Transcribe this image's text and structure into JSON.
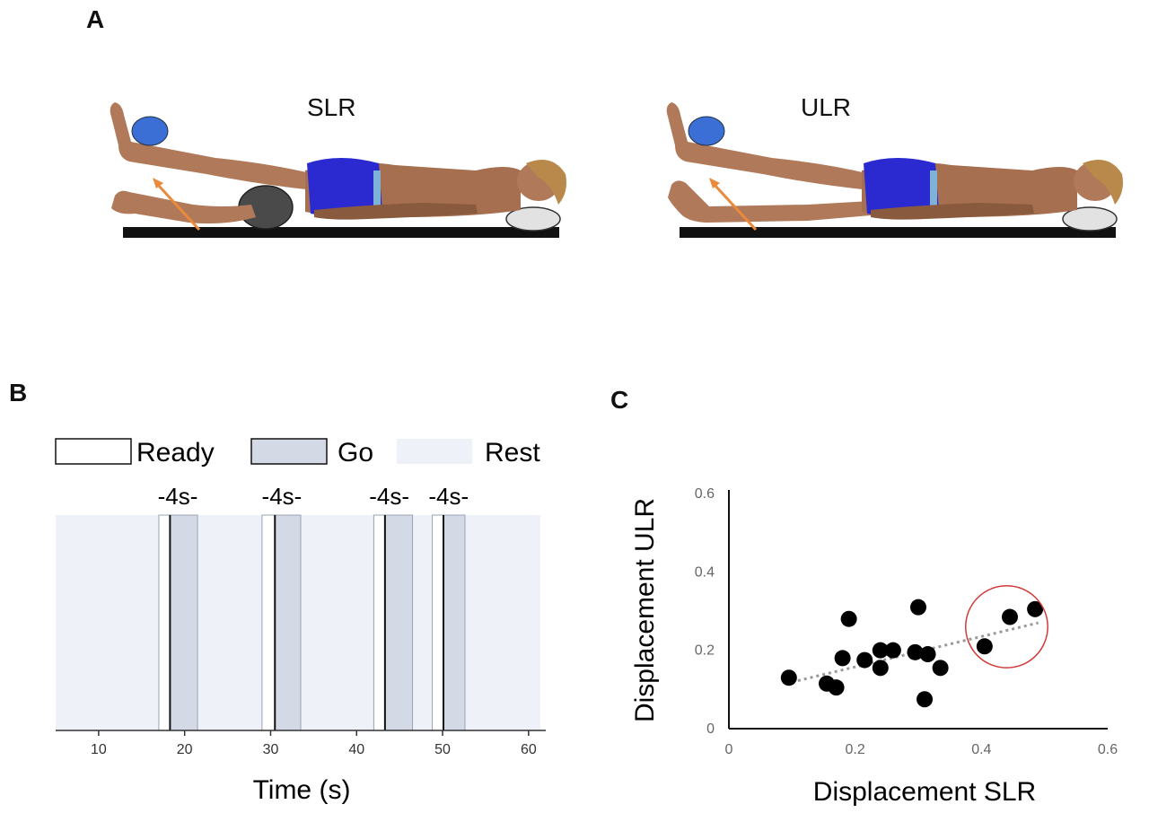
{
  "panels": {
    "a": {
      "label": "A"
    },
    "b": {
      "label": "B"
    },
    "c": {
      "label": "C"
    }
  },
  "illustrations": {
    "left": {
      "label": "SLR"
    },
    "right": {
      "label": "ULR"
    }
  },
  "colors": {
    "skin": "#b07a5a",
    "skin_dark": "#8a5a3e",
    "shorts": "#2a2ad0",
    "waistband": "#7fb2d8",
    "hair": "#b8894a",
    "blue_marker": "#3b6fd6",
    "dark_bolster": "#4a4a4a",
    "pillow": "#e2e2e2",
    "table": "#111111",
    "arrow": "#ea8a3a",
    "rest": "#eef1f7",
    "go": "#d3dae6",
    "ready": "#ffffff",
    "scatter_point": "#000000",
    "trendline": "#9a9a9a",
    "highlight_circle": "#d23a3a"
  },
  "chart_data": [
    {
      "type": "bar",
      "legend": [
        "Ready",
        "Go",
        "Rest"
      ],
      "xlabel": "Time (s)",
      "ylabel": "",
      "xlim": [
        5,
        62
      ],
      "xticks": [
        10,
        20,
        30,
        40,
        50,
        60
      ],
      "duration_label": "-4s-",
      "blocks": [
        {
          "ready": [
            17,
            18.3
          ],
          "go": [
            18.3,
            21.5
          ],
          "marker": 18.3
        },
        {
          "ready": [
            29,
            30.5
          ],
          "go": [
            30.5,
            33.5
          ],
          "marker": 30.5
        },
        {
          "ready": [
            42,
            43.3
          ],
          "go": [
            43.3,
            46.5
          ],
          "marker": 43.3
        },
        {
          "ready": [
            48.8,
            50.1
          ],
          "go": [
            50.1,
            52.6
          ],
          "marker": 50.1
        }
      ],
      "label_positions": [
        19.2,
        31.3,
        43.8,
        50.7
      ]
    },
    {
      "type": "scatter",
      "xlabel": "Displacement SLR",
      "ylabel": "Displacement ULR",
      "xlim": [
        0,
        0.6
      ],
      "ylim": [
        0,
        0.6
      ],
      "xticks": [
        "0",
        "0.2",
        "0.4",
        "0.6"
      ],
      "yticks": [
        "0",
        "0.2",
        "0.4",
        "0.6"
      ],
      "points": [
        [
          0.095,
          0.13
        ],
        [
          0.155,
          0.115
        ],
        [
          0.17,
          0.105
        ],
        [
          0.18,
          0.18
        ],
        [
          0.19,
          0.28
        ],
        [
          0.215,
          0.175
        ],
        [
          0.24,
          0.2
        ],
        [
          0.24,
          0.155
        ],
        [
          0.26,
          0.2
        ],
        [
          0.295,
          0.195
        ],
        [
          0.3,
          0.31
        ],
        [
          0.31,
          0.075
        ],
        [
          0.315,
          0.19
        ],
        [
          0.335,
          0.155
        ],
        [
          0.405,
          0.21
        ],
        [
          0.445,
          0.285
        ],
        [
          0.485,
          0.305
        ]
      ],
      "trendline": [
        [
          0.09,
          0.115
        ],
        [
          0.49,
          0.27
        ]
      ],
      "highlight": {
        "center": [
          0.44,
          0.26
        ],
        "radius": 0.065
      }
    }
  ]
}
